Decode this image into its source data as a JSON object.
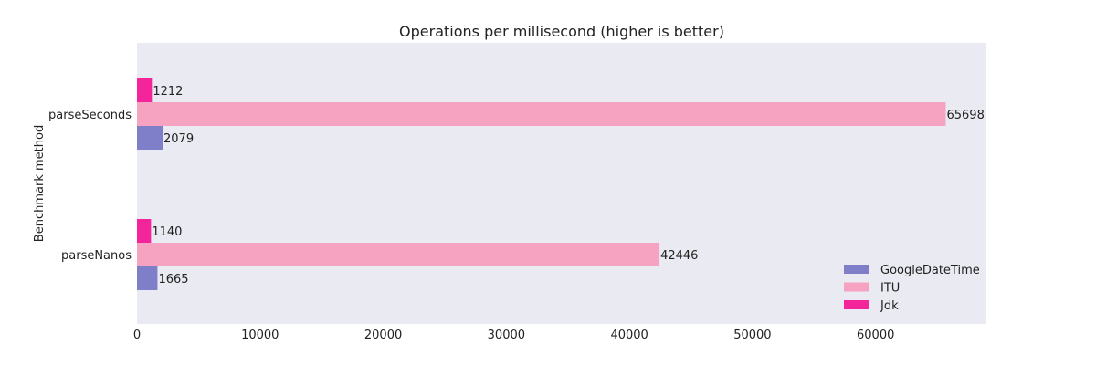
{
  "chart_data": {
    "type": "bar",
    "orientation": "horizontal",
    "title": "Operations per millisecond (higher is better)",
    "xlabel": "",
    "ylabel": "Benchmark method",
    "categories": [
      "parseSeconds",
      "parseNanos"
    ],
    "series": [
      {
        "name": "GoogleDateTime",
        "color": "#7f7fc9",
        "values": [
          2079,
          1665
        ]
      },
      {
        "name": "ITU",
        "color": "#f5a3c0",
        "values": [
          65698,
          42446
        ]
      },
      {
        "name": "Jdk",
        "color": "#f4259a",
        "values": [
          1212,
          1140
        ]
      }
    ],
    "xlim": [
      0,
      69000
    ],
    "xticks": [
      0,
      10000,
      20000,
      30000,
      40000,
      50000,
      60000
    ],
    "grid": false,
    "background": "#eaeaf2",
    "legend_position": "bottom-right"
  }
}
